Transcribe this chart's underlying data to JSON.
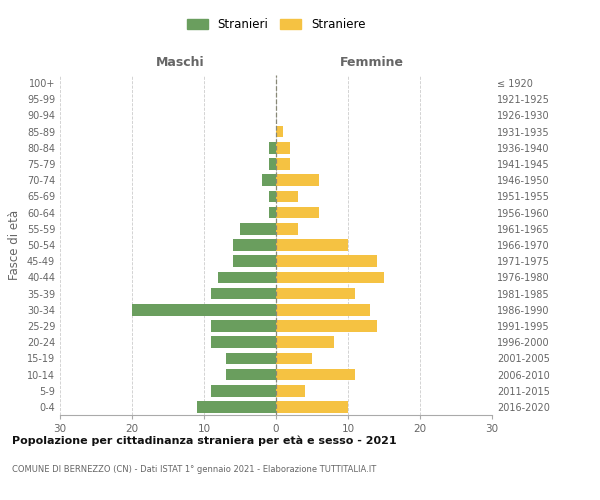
{
  "age_groups": [
    "0-4",
    "5-9",
    "10-14",
    "15-19",
    "20-24",
    "25-29",
    "30-34",
    "35-39",
    "40-44",
    "45-49",
    "50-54",
    "55-59",
    "60-64",
    "65-69",
    "70-74",
    "75-79",
    "80-84",
    "85-89",
    "90-94",
    "95-99",
    "100+"
  ],
  "birth_years": [
    "2016-2020",
    "2011-2015",
    "2006-2010",
    "2001-2005",
    "1996-2000",
    "1991-1995",
    "1986-1990",
    "1981-1985",
    "1976-1980",
    "1971-1975",
    "1966-1970",
    "1961-1965",
    "1956-1960",
    "1951-1955",
    "1946-1950",
    "1941-1945",
    "1936-1940",
    "1931-1935",
    "1926-1930",
    "1921-1925",
    "≤ 1920"
  ],
  "maschi": [
    11,
    9,
    7,
    7,
    9,
    9,
    20,
    9,
    8,
    6,
    6,
    5,
    1,
    1,
    2,
    1,
    1,
    0,
    0,
    0,
    0
  ],
  "femmine": [
    10,
    4,
    11,
    5,
    8,
    14,
    13,
    11,
    15,
    14,
    10,
    3,
    6,
    3,
    6,
    2,
    2,
    1,
    0,
    0,
    0
  ],
  "color_maschi": "#6a9e5e",
  "color_femmine": "#f5c242",
  "title": "Popolazione per cittadinanza straniera per età e sesso - 2021",
  "subtitle": "COMUNE DI BERNEZZO (CN) - Dati ISTAT 1° gennaio 2021 - Elaborazione TUTTITALIA.IT",
  "xlabel_left": "Maschi",
  "xlabel_right": "Femmine",
  "ylabel_left": "Fasce di età",
  "legend_maschi": "Stranieri",
  "legend_femmine": "Straniere",
  "xlim": 30,
  "background_color": "#ffffff",
  "grid_color": "#cccccc",
  "bar_height": 0.72
}
